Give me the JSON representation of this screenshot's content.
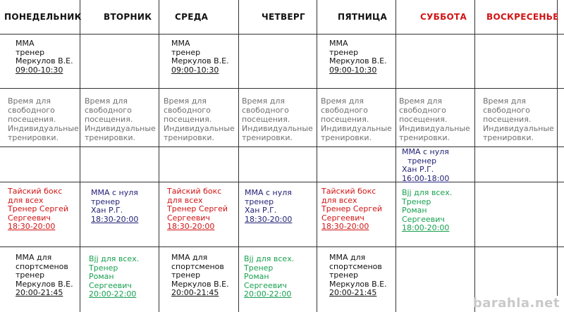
{
  "days": [
    "ПОНЕДЕЛЬНИК",
    "ВТОРНИК",
    "СРЕДА",
    "ЧЕТВЕРГ",
    "ПЯТНИЦА",
    "СУББОТА",
    "ВОСКРЕСЕНЬЕ"
  ],
  "colors": {
    "black": "#111111",
    "red": "#d21414",
    "blue": "#222277",
    "green": "#18a050",
    "gray": "#707070"
  },
  "row1": {
    "mma": [
      "ММА",
      "тренер",
      "Меркулов В.Е.",
      "09:00-10:30"
    ]
  },
  "row2": {
    "free": [
      "Время для",
      "свободного",
      "посещения.",
      "Индивидуальные",
      "тренировки."
    ]
  },
  "row3": {
    "sat": [
      "ММА с нуля",
      "тренер",
      "Хан Р.Г.",
      "16:00-18:00"
    ]
  },
  "row4": {
    "thai": [
      "Тайский бокс",
      "для всех",
      "Тренер Сергей",
      "Сергеевич",
      "18:30-20:00"
    ],
    "mma_beg": [
      "ММА с нуля",
      "тренер",
      "Хан Р.Г.",
      "18:30-20:00"
    ],
    "bjj_sat": [
      "Bjj для всех.",
      "Тренер",
      "Роман",
      "Сергеевич",
      "18:00-20:00"
    ]
  },
  "row5": {
    "mma_sport": [
      "ММА для",
      "спортсменов",
      "тренер",
      "Меркулов В.Е.",
      "20:00-21:45"
    ],
    "bjj": [
      "Bjj для всех.",
      "Тренер",
      "Роман",
      "Сергеевич",
      "20:00-22:00"
    ]
  },
  "watermark": "barahla.net"
}
